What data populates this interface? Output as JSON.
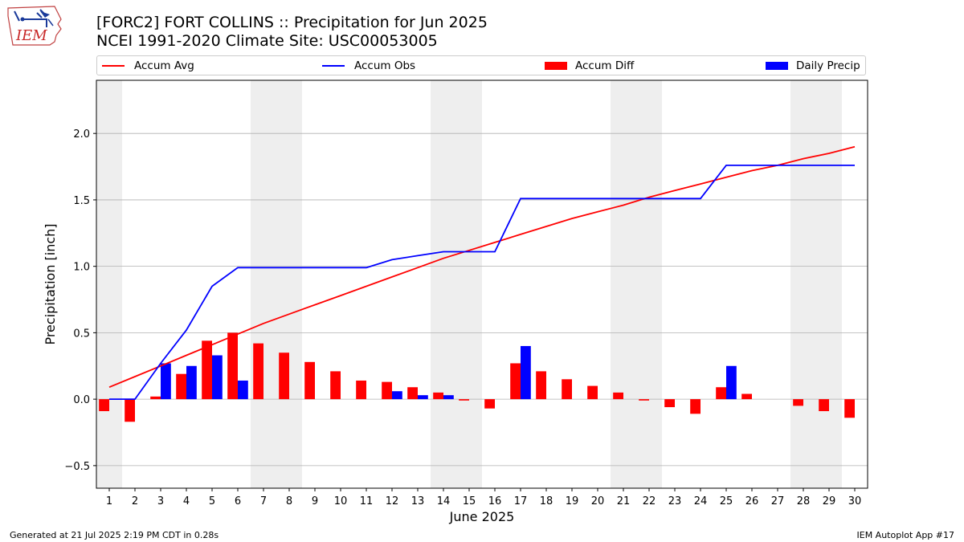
{
  "header": {
    "title_line1": "[FORC2] FORT COLLINS :: Precipitation for Jun 2025",
    "title_line2": "NCEI 1991-2020 Climate Site: USC00053005"
  },
  "logo": {
    "text": "IEM"
  },
  "footer": {
    "generated": "Generated at 21 Jul 2025 2:19 PM CDT in 0.28s",
    "app": "IEM Autoplot App #17"
  },
  "colors": {
    "accum_avg": "#ff0000",
    "accum_obs": "#0000ff",
    "accum_diff": "#ff0000",
    "daily_precip": "#0000ff",
    "weekend_shade": "#eeeeee",
    "grid": "#b0b0b0"
  },
  "chart_data": {
    "type": "bar",
    "title": "[FORC2] FORT COLLINS :: Precipitation for Jun 2025",
    "subtitle": "NCEI 1991-2020 Climate Site: USC00053005",
    "xlabel": "June 2025",
    "ylabel": "Precipitation [inch]",
    "ylim": [
      -0.67,
      2.4
    ],
    "xlim": [
      0.5,
      30.5
    ],
    "yticks": [
      -0.5,
      0.0,
      0.5,
      1.0,
      1.5,
      2.0
    ],
    "ytick_labels": [
      "−0.5",
      "0.0",
      "0.5",
      "1.0",
      "1.5",
      "2.0"
    ],
    "categories": [
      "1",
      "2",
      "3",
      "4",
      "5",
      "6",
      "7",
      "8",
      "9",
      "10",
      "11",
      "12",
      "13",
      "14",
      "15",
      "16",
      "17",
      "18",
      "19",
      "20",
      "21",
      "22",
      "23",
      "24",
      "25",
      "26",
      "27",
      "28",
      "29",
      "30"
    ],
    "grid": "horizontal",
    "legend_position": "top",
    "shaded_days": [
      1,
      7,
      8,
      14,
      15,
      21,
      22,
      28,
      29
    ],
    "series": [
      {
        "name": "Accum Avg",
        "kind": "line",
        "values": [
          0.09,
          0.17,
          0.25,
          0.33,
          0.41,
          0.49,
          0.57,
          0.64,
          0.71,
          0.78,
          0.85,
          0.92,
          0.99,
          1.06,
          1.12,
          1.18,
          1.24,
          1.3,
          1.36,
          1.41,
          1.46,
          1.52,
          1.57,
          1.62,
          1.67,
          1.72,
          1.76,
          1.81,
          1.85,
          1.9
        ]
      },
      {
        "name": "Accum Obs",
        "kind": "line",
        "values": [
          0.0,
          0.0,
          0.27,
          0.52,
          0.85,
          0.99,
          0.99,
          0.99,
          0.99,
          0.99,
          0.99,
          1.05,
          1.08,
          1.11,
          1.11,
          1.11,
          1.51,
          1.51,
          1.51,
          1.51,
          1.51,
          1.51,
          1.51,
          1.51,
          1.76,
          1.76,
          1.76,
          1.76,
          1.76,
          1.76
        ]
      },
      {
        "name": "Accum Diff",
        "kind": "bar",
        "values": [
          -0.09,
          -0.17,
          0.02,
          0.19,
          0.44,
          0.5,
          0.42,
          0.35,
          0.28,
          0.21,
          0.14,
          0.13,
          0.09,
          0.05,
          -0.01,
          -0.07,
          0.27,
          0.21,
          0.15,
          0.1,
          0.05,
          -0.01,
          -0.06,
          -0.11,
          0.09,
          0.04,
          0.0,
          -0.05,
          -0.09,
          -0.14
        ]
      },
      {
        "name": "Daily Precip",
        "kind": "bar",
        "values": [
          0.0,
          0.0,
          0.27,
          0.25,
          0.33,
          0.14,
          0.0,
          0.0,
          0.0,
          0.0,
          0.0,
          0.06,
          0.03,
          0.03,
          0.0,
          0.0,
          0.4,
          0.0,
          0.0,
          0.0,
          0.0,
          0.0,
          0.0,
          0.0,
          0.25,
          0.0,
          0.0,
          0.0,
          0.0,
          0.0
        ]
      }
    ]
  }
}
